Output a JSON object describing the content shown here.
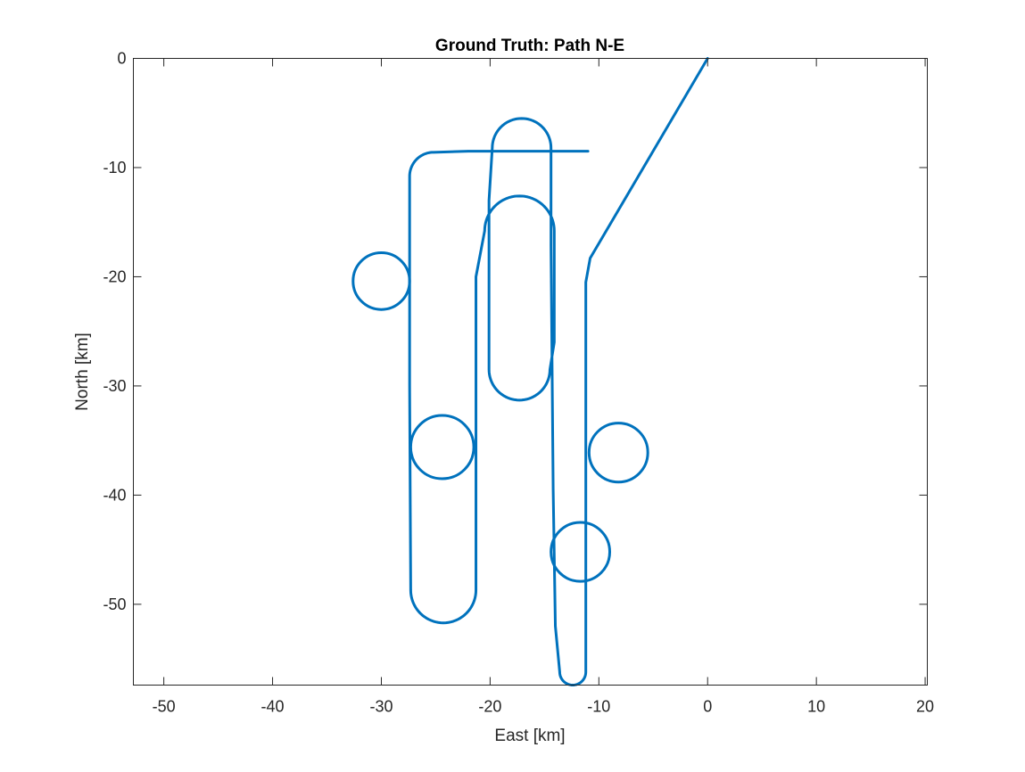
{
  "chart_data": {
    "type": "line",
    "title": "Ground Truth: Path N-E",
    "xlabel": "East [km]",
    "ylabel": "North [km]",
    "xlim": [
      -52.8,
      20.2
    ],
    "ylim": [
      -57.4,
      0
    ],
    "xticks": [
      -50,
      -40,
      -30,
      -20,
      -10,
      0,
      10,
      20
    ],
    "yticks": [
      -50,
      -40,
      -30,
      -20,
      -10,
      0
    ],
    "grid": false,
    "line_color": "#0072BD",
    "series": [
      {
        "segments": [
          {
            "kind": "polyline",
            "points": [
              [
                0,
                0
              ],
              [
                -10.8,
                -18.3
              ],
              [
                -11.2,
                -20.5
              ],
              [
                -11.2,
                -56.2
              ]
            ]
          },
          {
            "kind": "arc",
            "cx": -12.4,
            "cy": -56.2,
            "r": 1.2,
            "from": 0,
            "to": -180
          },
          {
            "kind": "polyline",
            "points": [
              [
                -13.6,
                -56.2
              ],
              [
                -14.0,
                -52
              ],
              [
                -14.2,
                -39.5
              ],
              [
                -14.4,
                -17.2
              ],
              [
                -14.4,
                -8.2
              ]
            ]
          },
          {
            "kind": "arc",
            "cx": -17.1,
            "cy": -8.2,
            "r": 2.7,
            "from": 0,
            "to": 180
          },
          {
            "kind": "polyline",
            "points": [
              [
                -19.8,
                -8.2
              ],
              [
                -20.1,
                -13
              ],
              [
                -20.1,
                -28.5
              ]
            ]
          },
          {
            "kind": "arc",
            "cx": -17.3,
            "cy": -28.5,
            "r": 2.8,
            "from": 180,
            "to": 360
          },
          {
            "kind": "polyline",
            "points": [
              [
                -14.5,
                -28.5
              ],
              [
                -14.1,
                -26
              ],
              [
                -14.1,
                -15.8
              ]
            ]
          },
          {
            "kind": "arc",
            "cx": -17.3,
            "cy": -15.8,
            "r": 3.2,
            "from": 0,
            "to": 180
          },
          {
            "kind": "polyline",
            "points": [
              [
                -20.5,
                -15.8
              ],
              [
                -21.3,
                -20
              ],
              [
                -21.3,
                -48.7
              ]
            ]
          },
          {
            "kind": "arc",
            "cx": -24.3,
            "cy": -48.7,
            "r": 3.0,
            "from": 0,
            "to": -180
          },
          {
            "kind": "polyline",
            "points": [
              [
                -27.3,
                -48.7
              ],
              [
                -27.4,
                -30
              ],
              [
                -27.4,
                -10.8
              ]
            ]
          },
          {
            "kind": "arc",
            "cx": -25.2,
            "cy": -10.8,
            "r": 2.2,
            "from": 180,
            "to": 90
          },
          {
            "kind": "polyline",
            "points": [
              [
                -25.2,
                -8.6
              ],
              [
                -22,
                -8.5
              ],
              [
                -11.0,
                -8.5
              ]
            ]
          }
        ],
        "circles": [
          {
            "cx": -30.0,
            "cy": -20.4,
            "r": 2.6
          },
          {
            "cx": -24.4,
            "cy": -35.6,
            "r": 2.9
          },
          {
            "cx": -8.2,
            "cy": -36.1,
            "r": 2.7
          },
          {
            "cx": -11.7,
            "cy": -45.2,
            "r": 2.7
          }
        ]
      }
    ]
  }
}
